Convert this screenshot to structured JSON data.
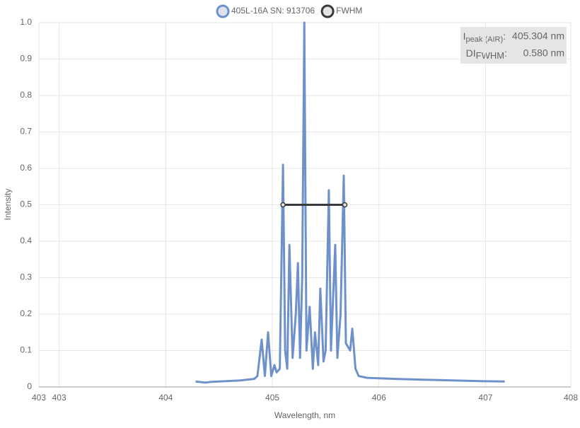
{
  "chart_data": {
    "type": "line",
    "legend_position": "top",
    "x_label": "Wavelength, nm",
    "y_label": "Intensity",
    "annotation": {
      "symbol1": "I",
      "sub1": "peak (AIR)",
      "value1": "405.304 nm",
      "symbol2": "DI",
      "sub2": "FWHM",
      "value2": "0.580 nm"
    },
    "xlim": [
      402.81,
      407.8
    ],
    "xticks": [
      {
        "value": 402.81,
        "label": "403"
      },
      403,
      404,
      405,
      406,
      407,
      {
        "value": 407.8,
        "label": "408"
      }
    ],
    "ylim": [
      0,
      1
    ],
    "yticks": [
      0,
      0.1,
      0.2,
      0.3,
      0.4,
      0.5,
      0.6,
      0.7,
      0.8,
      0.9,
      {
        "value": 1,
        "label": "1.0"
      }
    ],
    "grid": true,
    "series": [
      {
        "name": "405L-16A SN: 913706",
        "color": "#6f91c9",
        "fill": "#dde3ee",
        "x": [
          404.28,
          404.37,
          404.43,
          404.57,
          404.7,
          404.83,
          404.86,
          404.9,
          404.93,
          404.96,
          404.99,
          405.02,
          405.04,
          405.07,
          405.1,
          405.12,
          405.14,
          405.16,
          405.19,
          405.22,
          405.24,
          405.26,
          405.28,
          405.3,
          405.32,
          405.35,
          405.38,
          405.4,
          405.43,
          405.45,
          405.48,
          405.5,
          405.53,
          405.55,
          405.59,
          405.61,
          405.64,
          405.67,
          405.69,
          405.73,
          405.75,
          405.78,
          405.81,
          405.89,
          406.16,
          406.42,
          406.69,
          406.95,
          407.18
        ],
        "values": [
          0.015,
          0.012,
          0.014,
          0.016,
          0.018,
          0.022,
          0.03,
          0.13,
          0.03,
          0.15,
          0.03,
          0.06,
          0.04,
          0.05,
          0.61,
          0.1,
          0.05,
          0.39,
          0.08,
          0.2,
          0.34,
          0.08,
          0.3,
          1.0,
          0.1,
          0.22,
          0.05,
          0.15,
          0.06,
          0.27,
          0.07,
          0.1,
          0.54,
          0.1,
          0.39,
          0.08,
          0.2,
          0.58,
          0.12,
          0.1,
          0.16,
          0.05,
          0.03,
          0.025,
          0.022,
          0.02,
          0.018,
          0.016,
          0.015
        ]
      },
      {
        "name": "FWHM",
        "color": "#3a3a3a",
        "fill": "#e5e5e5",
        "x": [
          405.1,
          405.68
        ],
        "values": [
          0.5,
          0.5
        ]
      }
    ]
  }
}
